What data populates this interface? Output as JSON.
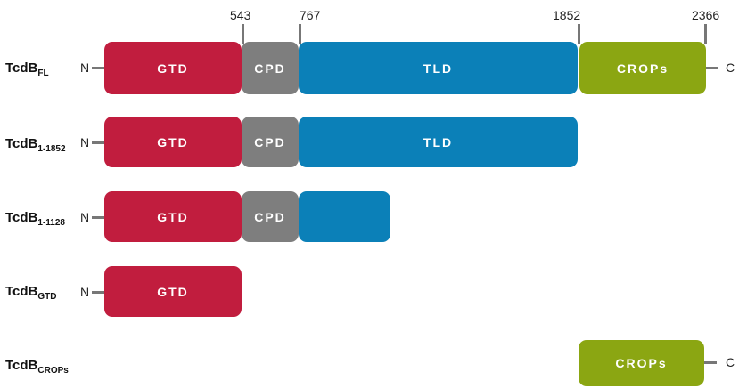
{
  "positions": [
    "543",
    "767",
    "1852",
    "2366"
  ],
  "terminals": {
    "n": "N",
    "c": "C"
  },
  "domains": {
    "gtd": "GTD",
    "cpd": "CPD",
    "tld": "TLD",
    "crops": "CROPs"
  },
  "rows": [
    {
      "name": "TcdB",
      "sub": "FL"
    },
    {
      "name": "TcdB",
      "sub": "1-1852"
    },
    {
      "name": "TcdB",
      "sub": "1-1128"
    },
    {
      "name": "TcdB",
      "sub": "GTD"
    },
    {
      "name": "TcdB",
      "sub": "CROPs"
    }
  ],
  "colors": {
    "gtd": "#c11d3e",
    "cpd": "#7e7e7e",
    "tld": "#0b80b8",
    "crops": "#8ba612"
  }
}
